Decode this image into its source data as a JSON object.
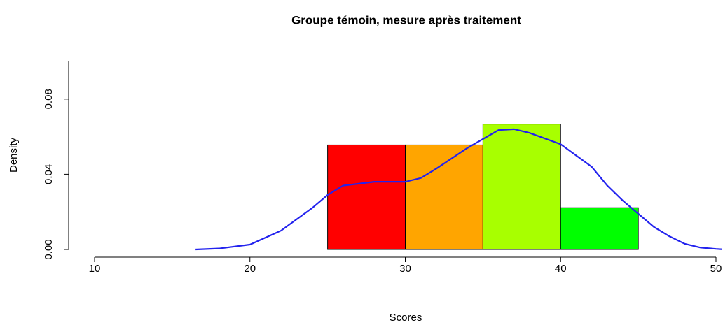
{
  "chart_data": {
    "type": "histogram",
    "title": "Groupe témoin, mesure après traitement",
    "x_label": "Scores",
    "y_label": "Density",
    "bins": [
      25,
      30,
      35,
      40,
      45
    ],
    "values": [
      0.0556,
      0.0556,
      0.0667,
      0.0222
    ],
    "colors": [
      "#ff0000",
      "#ffa500",
      "#a8ff00",
      "#00ff00"
    ],
    "density": {
      "color": "#2222ee",
      "x": [
        16.5,
        18,
        20,
        22,
        24,
        25,
        26,
        28,
        30,
        31,
        32,
        34,
        36,
        37,
        38,
        40,
        42,
        43,
        44,
        45,
        46,
        47,
        48,
        49,
        50,
        50.4
      ],
      "y": [
        0,
        0.0005,
        0.0026,
        0.01,
        0.022,
        0.029,
        0.034,
        0.036,
        0.036,
        0.038,
        0.043,
        0.054,
        0.0635,
        0.064,
        0.062,
        0.056,
        0.044,
        0.034,
        0.026,
        0.019,
        0.012,
        0.007,
        0.003,
        0.001,
        0.0003,
        0.0001
      ]
    },
    "xlim": [
      10,
      50
    ],
    "xticks": [
      10,
      20,
      30,
      40,
      50
    ],
    "ylim": [
      0,
      0.1
    ],
    "yticks": [
      {
        "value": 0,
        "label": "0.00"
      },
      {
        "value": 0.04,
        "label": "0.04"
      },
      {
        "value": 0.08,
        "label": "0.08"
      }
    ]
  }
}
